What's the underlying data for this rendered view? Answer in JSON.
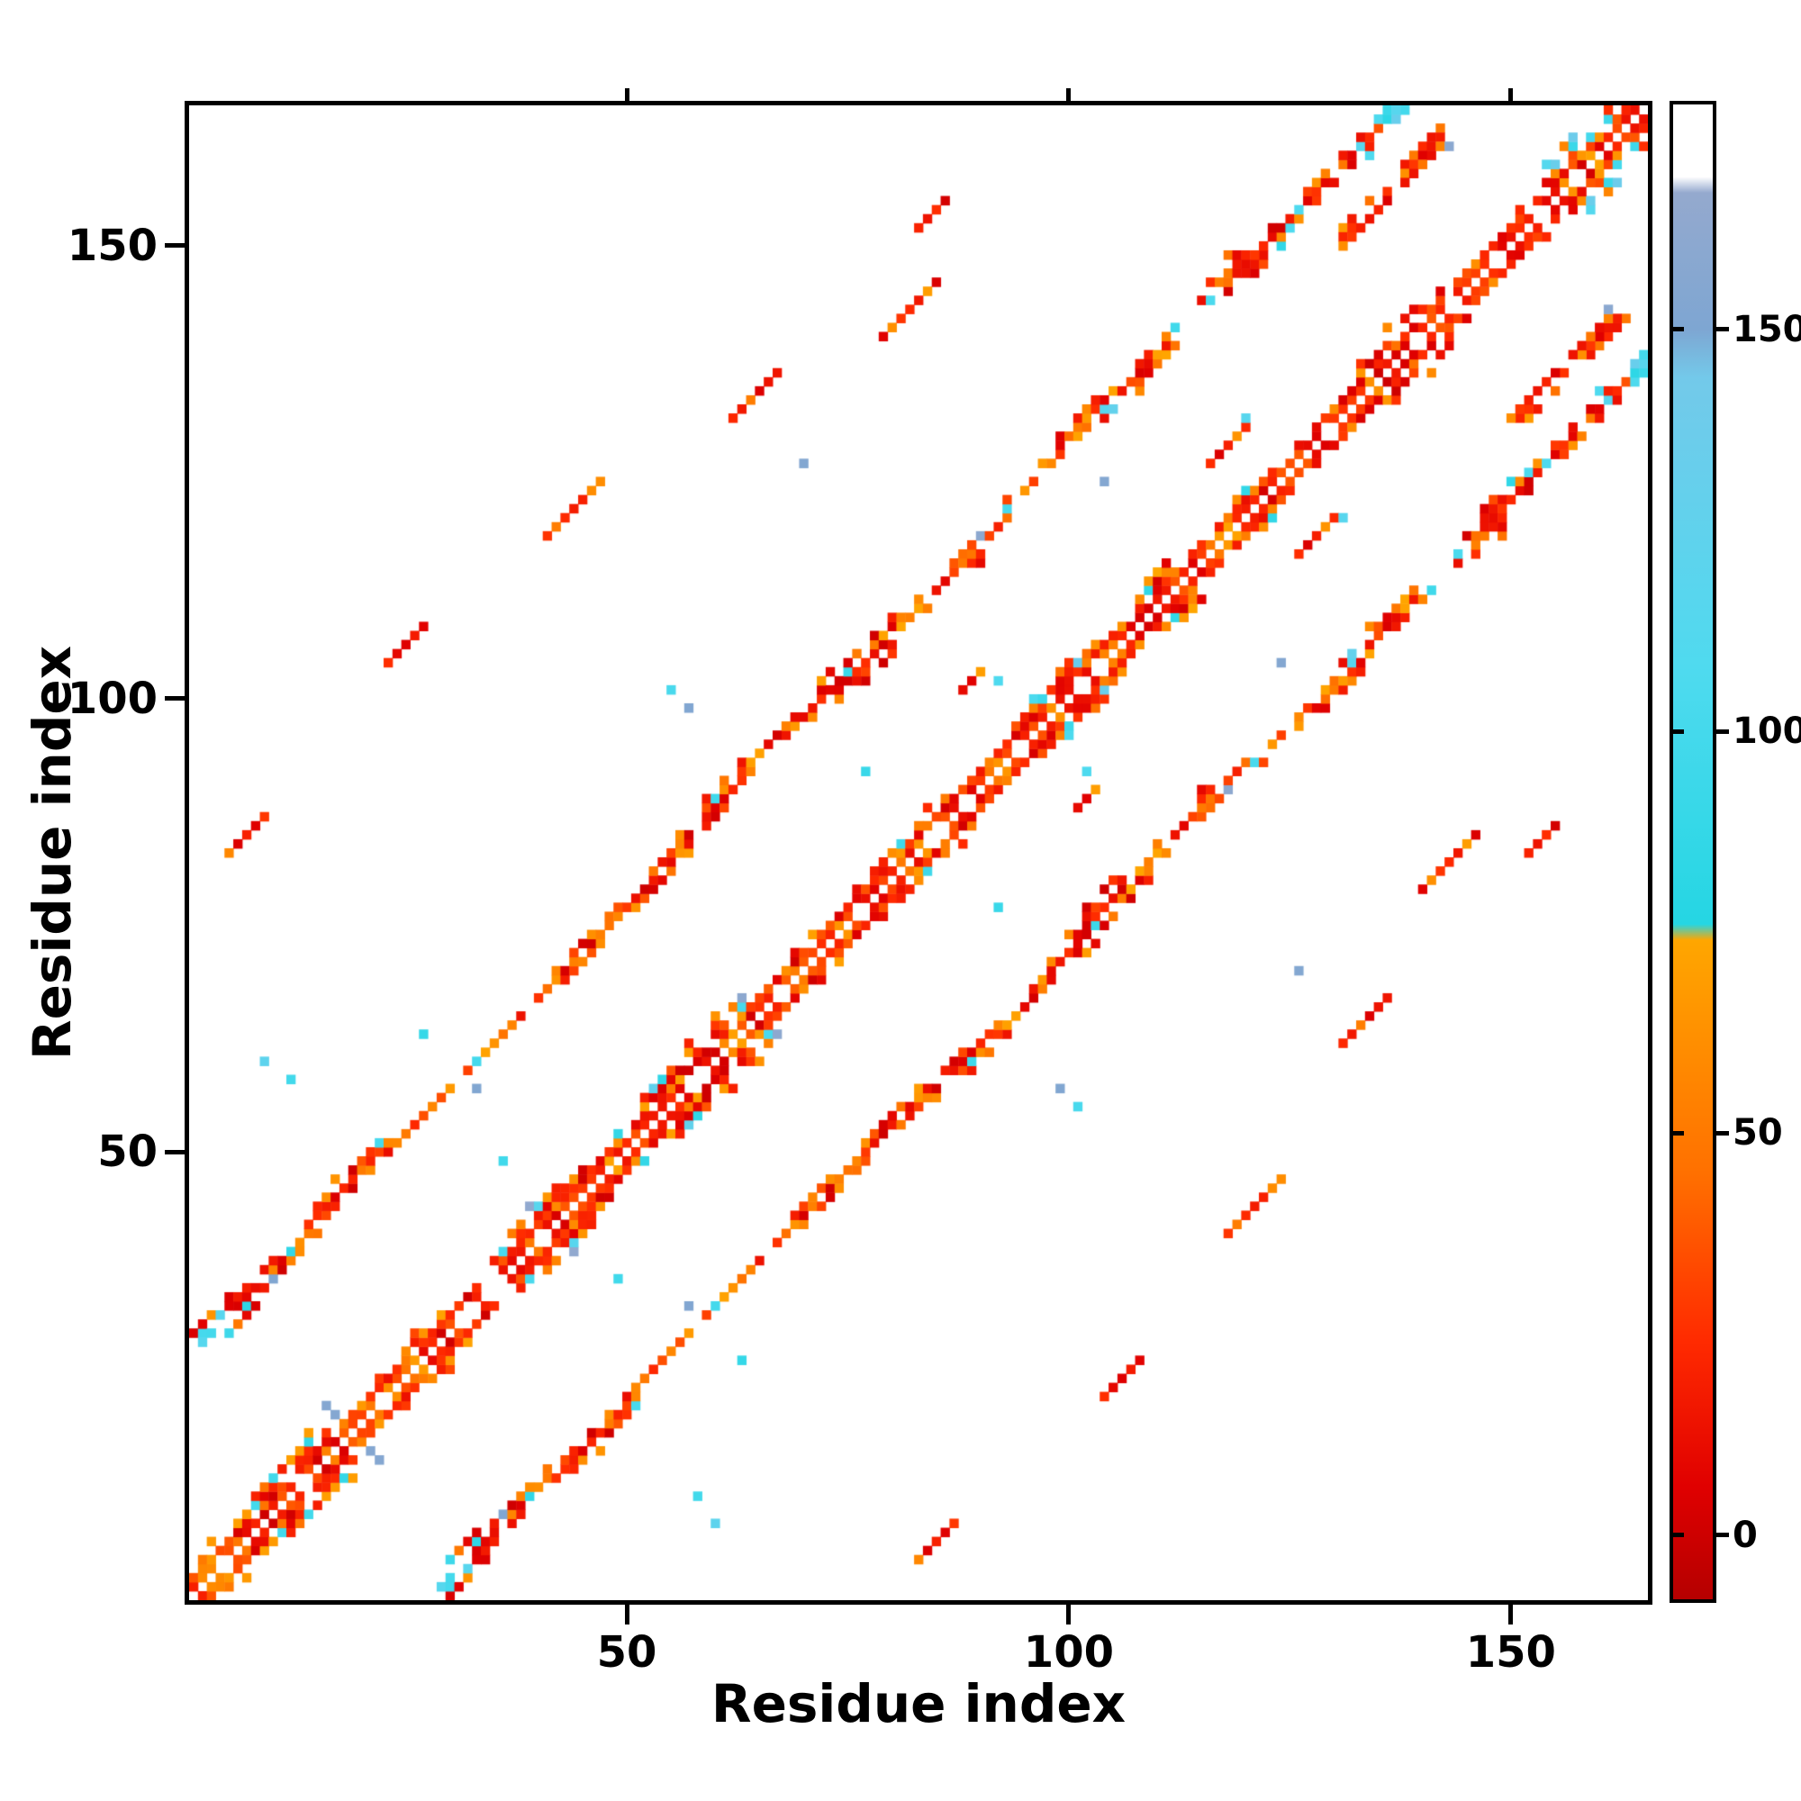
{
  "figure": {
    "background": "#ffffff"
  },
  "chart_data": {
    "type": "heatmap",
    "title": "",
    "xlabel": "Residue index",
    "ylabel": "Residue index",
    "n_residues": 165,
    "x_range": [
      1,
      165
    ],
    "y_range": [
      1,
      165
    ],
    "x_ticks": [
      50,
      100,
      150
    ],
    "y_ticks": [
      50,
      100,
      150
    ],
    "grid": false,
    "legend": "colorbar-right",
    "seed": 42,
    "band_offset": 28,
    "description": "Symmetric residue-residue contact map: dense band along the main diagonal plus two parallel bands at sequence offset +/-28, with scattered short diagonal contact clusters; cell color encodes the colorbar value (red near 0, orange near 50-75, cyan near 80-145, slate blue near 150-165, white above).",
    "colorbar": {
      "ticks": [
        0,
        50,
        100,
        150
      ],
      "range": [
        -8,
        178
      ],
      "stops": [
        {
          "v": -8,
          "color": "#b50000"
        },
        {
          "v": 6,
          "color": "#e00000"
        },
        {
          "v": 24,
          "color": "#ff2a00"
        },
        {
          "v": 45,
          "color": "#ff7000"
        },
        {
          "v": 74,
          "color": "#ffa600"
        },
        {
          "v": 76,
          "color": "#25d6e3"
        },
        {
          "v": 108,
          "color": "#4fdaef"
        },
        {
          "v": 144,
          "color": "#73c9ea"
        },
        {
          "v": 150,
          "color": "#7ea6d2"
        },
        {
          "v": 167,
          "color": "#94a9ce"
        },
        {
          "v": 169,
          "color": "#ffffff"
        },
        {
          "v": 178,
          "color": "#ffffff"
        }
      ]
    },
    "clusters": [
      {
        "x": 5,
        "y": 83,
        "len": 5
      },
      {
        "x": 23,
        "y": 104,
        "len": 5
      },
      {
        "x": 41,
        "y": 118,
        "len": 7
      },
      {
        "x": 62,
        "y": 131,
        "len": 6
      },
      {
        "x": 79,
        "y": 140,
        "len": 7
      },
      {
        "x": 83,
        "y": 152,
        "len": 4
      },
      {
        "x": 88,
        "y": 101,
        "len": 3
      },
      {
        "x": 116,
        "y": 126,
        "len": 5
      },
      {
        "x": 118,
        "y": 146,
        "len": 8
      },
      {
        "x": 130,
        "y": 151,
        "len": 13,
        "w": 3
      }
    ],
    "cyan_dots": [
      [
        5,
        30
      ],
      [
        12,
        58
      ],
      [
        9,
        60
      ],
      [
        36,
        49
      ],
      [
        55,
        101
      ],
      [
        77,
        92
      ],
      [
        92,
        102
      ],
      [
        120,
        131
      ],
      [
        27,
        63
      ]
    ],
    "blue_dots": [
      [
        16,
        22
      ],
      [
        57,
        99
      ],
      [
        70,
        126
      ],
      [
        90,
        118
      ],
      [
        104,
        124
      ],
      [
        143,
        161
      ],
      [
        33,
        57
      ]
    ]
  }
}
